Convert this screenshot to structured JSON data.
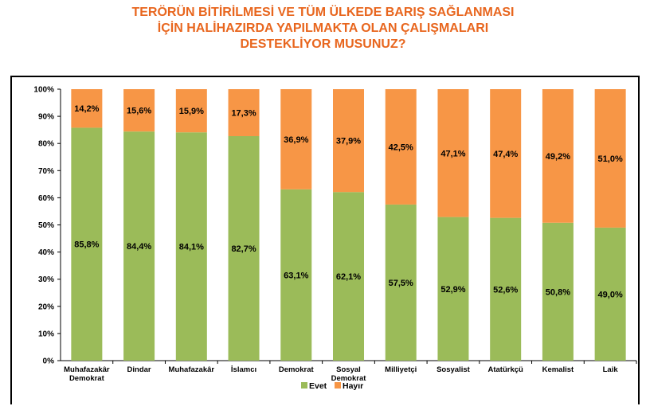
{
  "title_lines": [
    "TERÖRÜN BİTİRİLMESİ VE TÜM ÜLKEDE BARIŞ SAĞLANMASI",
    "İÇİN HALİHAZIRDA YAPILMAKTA OLAN ÇALIŞMALARI",
    "DESTEKLİYOR MUSUNUZ?"
  ],
  "chart_data": {
    "type": "bar",
    "stacked": true,
    "percent_stacked": true,
    "title": "TERÖRÜN BİTİRİLMESİ VE TÜM ÜLKEDE BARIŞ SAĞLANMASI İÇİN HALİHAZIRDA YAPILMAKTA OLAN ÇALIŞMALARI DESTEKLİYOR MUSUNUZ?",
    "categories": [
      [
        "Muhafazakâr",
        "Demokrat"
      ],
      [
        "Dindar"
      ],
      [
        "Muhafazakâr"
      ],
      [
        "İslamcı"
      ],
      [
        "Demokrat"
      ],
      [
        "Sosyal",
        "Demokrat"
      ],
      [
        "Milliyetçi"
      ],
      [
        "Sosyalist"
      ],
      [
        "Atatürkçü"
      ],
      [
        "Kemalist"
      ],
      [
        "Laik"
      ]
    ],
    "series": [
      {
        "name": "Evet",
        "color": "#9bbb59",
        "values": [
          85.8,
          84.4,
          84.1,
          82.7,
          63.1,
          62.1,
          57.5,
          52.9,
          52.6,
          50.8,
          49.0
        ],
        "labels": [
          "85,8%",
          "84,4%",
          "84,1%",
          "82,7%",
          "63,1%",
          "62,1%",
          "57,5%",
          "52,9%",
          "52,6%",
          "50,8%",
          "49,0%"
        ]
      },
      {
        "name": "Hayır",
        "color": "#f79646",
        "values": [
          14.2,
          15.6,
          15.9,
          17.3,
          36.9,
          37.9,
          42.5,
          47.1,
          47.4,
          49.2,
          51.0
        ],
        "labels": [
          "14,2%",
          "15,6%",
          "15,9%",
          "17,3%",
          "36,9%",
          "37,9%",
          "42,5%",
          "47,1%",
          "47,4%",
          "49,2%",
          "51,0%"
        ]
      }
    ],
    "yticks": [
      "0%",
      "10%",
      "20%",
      "30%",
      "40%",
      "50%",
      "60%",
      "70%",
      "80%",
      "90%",
      "100%"
    ],
    "ylim": [
      0,
      100
    ],
    "grid": false,
    "legend_position": "bottom"
  }
}
